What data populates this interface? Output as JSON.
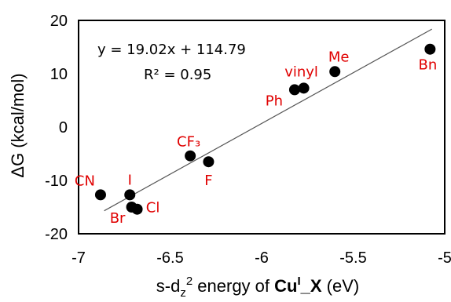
{
  "chart_data": {
    "type": "scatter",
    "xlabel": {
      "prefix": "s-d",
      "sub": "z",
      "sup": "2",
      "mid": " energy of ",
      "bold": "Cu",
      "bold_sup": "I",
      "bold_tail": "_X",
      "tail": " (eV)"
    },
    "ylabel": "ΔG (kcal/mol)",
    "xlim": [
      -7,
      -5
    ],
    "ylim": [
      -20,
      20
    ],
    "xticks": [
      "-7",
      "-6.5",
      "-6",
      "-5.5",
      "-5"
    ],
    "yticks": [
      "20",
      "10",
      "0",
      "-10",
      "-20"
    ],
    "grid": false,
    "trendline": {
      "slope": 19.02,
      "intercept": 114.79,
      "x_range": [
        -6.86,
        -5.07
      ]
    },
    "equation": "y = 19.02x + 114.79",
    "r2": "R² = 0.95",
    "points": [
      {
        "label": "CN",
        "x": -6.88,
        "y": -12.7
      },
      {
        "label": "I",
        "x": -6.72,
        "y": -12.7
      },
      {
        "label": "Br",
        "x": -6.71,
        "y": -15.0
      },
      {
        "label": "Cl",
        "x": -6.68,
        "y": -15.4
      },
      {
        "label": "CF₃",
        "x": -6.39,
        "y": -5.4
      },
      {
        "label": "F",
        "x": -6.29,
        "y": -6.5
      },
      {
        "label": "Ph",
        "x": -5.82,
        "y": 7.0
      },
      {
        "label": "vinyl",
        "x": -5.77,
        "y": 7.3
      },
      {
        "label": "Me",
        "x": -5.6,
        "y": 10.4
      },
      {
        "label": "Bn",
        "x": -5.08,
        "y": 14.6
      }
    ],
    "colors": {
      "marker": "#000000",
      "label": "#e00000",
      "line": "#555555"
    }
  }
}
